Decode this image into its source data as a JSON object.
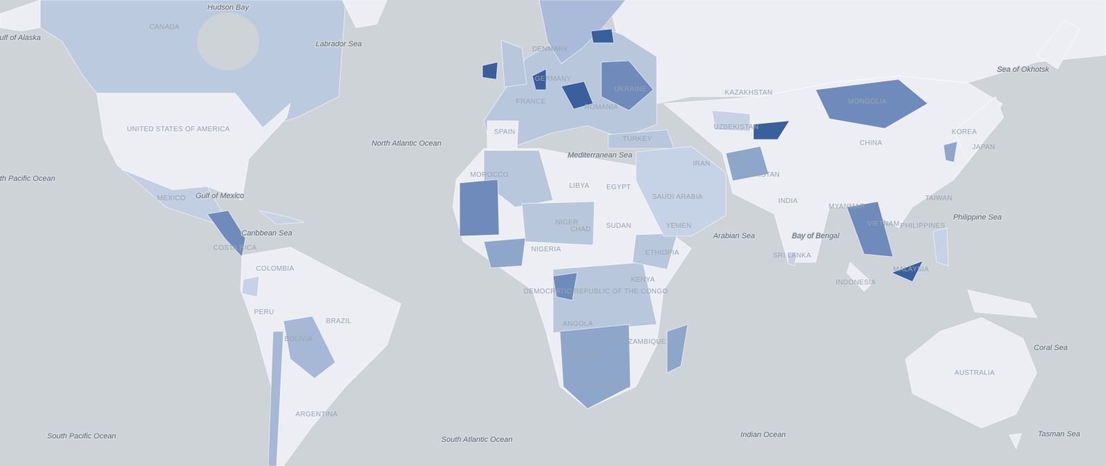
{
  "map": {
    "water_labels": [
      "Hudson Bay",
      "Labrador Sea",
      "Gulf of Alaska",
      "North Atlantic Ocean",
      "South Pacific Ocean",
      "Gulf of Mexico",
      "Caribbean Sea",
      "Mediterranean Sea",
      "Arabian Sea",
      "Bay of Bengal",
      "Sea of Okhotsk",
      "Philippine Sea",
      "Coral Sea",
      "Indian Ocean",
      "South Atlantic Ocean",
      "South Pacific Ocean",
      "Tasman Sea"
    ],
    "country_labels": [
      "CANADA",
      "UNITED STATES OF AMERICA",
      "MEXICO",
      "COSTA RICA",
      "COLOMBIA",
      "PERU",
      "BRAZIL",
      "BOLIVIA",
      "ARGENTINA",
      "SPAIN",
      "FRANCE",
      "GERMANY",
      "DENMARK",
      "UKRAINE",
      "ROMANIA",
      "TURKEY",
      "MOROCCO",
      "LIBYA",
      "EGYPT",
      "NIGER",
      "CHAD",
      "SUDAN",
      "NIGERIA",
      "ETHIOPIA",
      "KENYA",
      "DEMOCRATIC REPUBLIC OF THE CONGO",
      "ANGOLA",
      "NAMIBIA",
      "MOZAMBIQUE",
      "SOUTH AFRICA",
      "SAUDI ARABIA",
      "YEMEN",
      "IRAN",
      "PAKISTAN",
      "KAZAKHSTAN",
      "UZBEKISTAN",
      "MONGOLIA",
      "CHINA",
      "INDIA",
      "SRI LANKA",
      "MYANMAR",
      "VIETNAM",
      "TAIWAN",
      "PHILIPPINES",
      "MALAYSIA",
      "INDONESIA",
      "KOREA",
      "JAPAN",
      "AUSTRALIA"
    ]
  }
}
